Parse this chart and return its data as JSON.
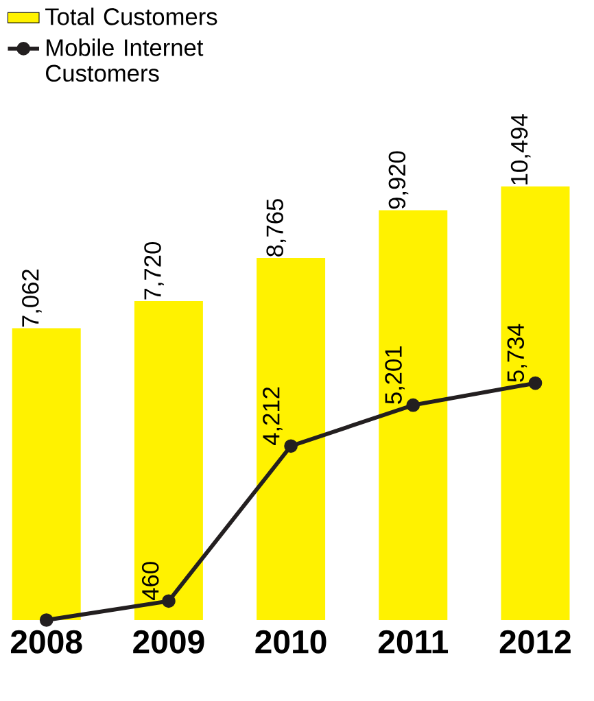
{
  "chart_data": {
    "type": "bar",
    "categories": [
      "2008",
      "2009",
      "2010",
      "2011",
      "2012"
    ],
    "series": [
      {
        "name": "Total Customers",
        "color": "#fff200",
        "values": [
          7062,
          7720,
          8765,
          9920,
          10494
        ],
        "value_labels": [
          "7,062",
          "7,720",
          "8,765",
          "9,920",
          "10,494"
        ]
      },
      {
        "name": "Mobile Internet Customers",
        "type": "line",
        "color": "#231f20",
        "marker": "circle",
        "values": [
          0,
          460,
          4212,
          5201,
          5734
        ],
        "value_labels": [
          null,
          "460",
          "4,212",
          "5,201",
          "5,734"
        ]
      }
    ],
    "legend": "top left"
  }
}
